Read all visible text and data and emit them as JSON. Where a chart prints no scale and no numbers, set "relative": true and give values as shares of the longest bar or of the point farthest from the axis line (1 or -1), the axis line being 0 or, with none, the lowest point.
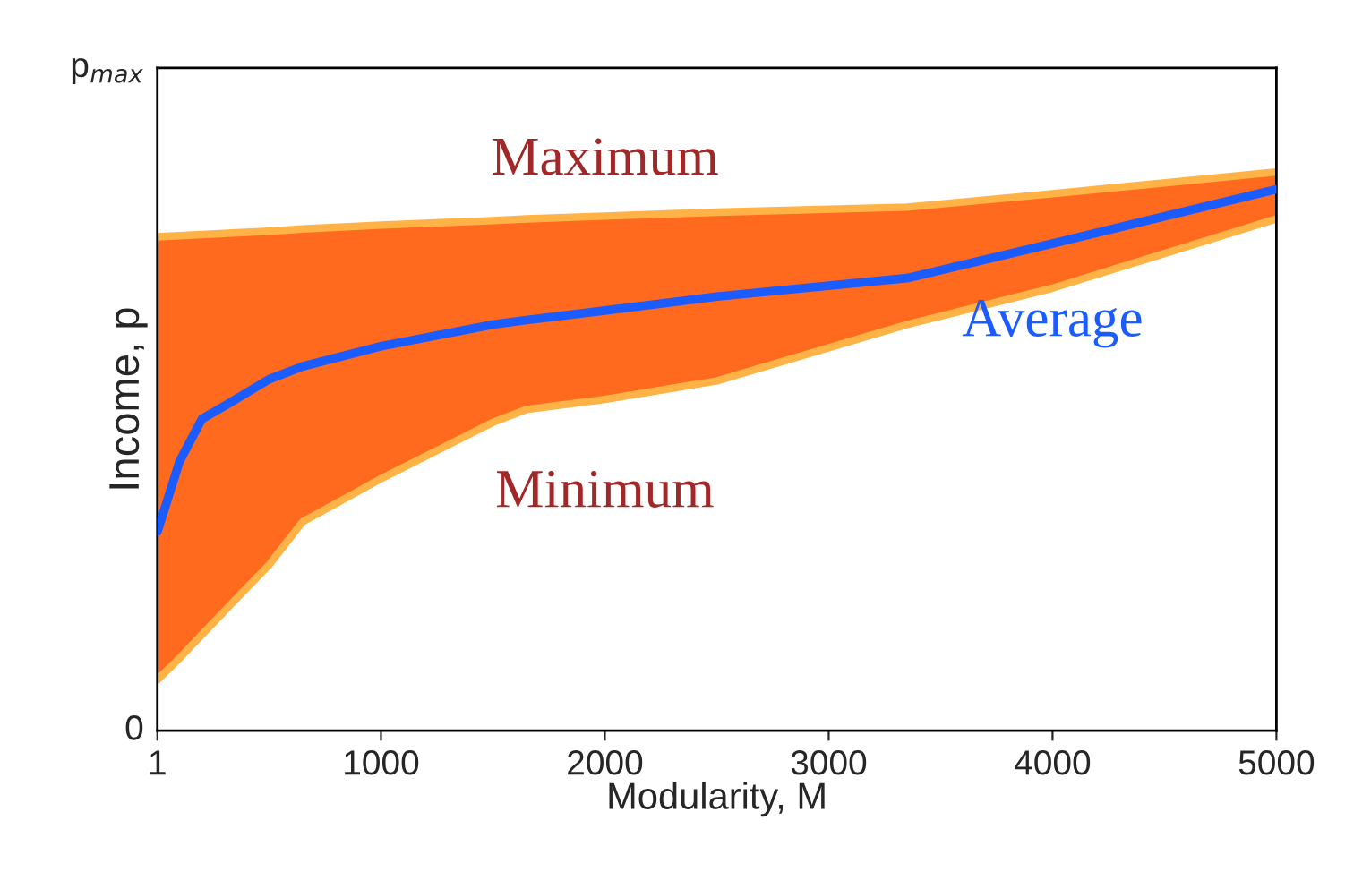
{
  "chart_data": {
    "type": "line",
    "xlabel": "Modularity, M",
    "ylabel": "Income, p",
    "relative": true,
    "x": [
      1,
      100,
      200,
      300,
      500,
      650,
      1000,
      1500,
      1650,
      2000,
      2500,
      3350,
      4000,
      5000
    ],
    "series": [
      {
        "name": "Maximum",
        "type": "area",
        "color": "#ff6a1f",
        "values": [
          0.884,
          0.886,
          0.888,
          0.89,
          0.894,
          0.898,
          0.905,
          0.913,
          0.916,
          0.921,
          0.928,
          0.937,
          0.961,
          1
        ]
      },
      {
        "name": "Minimum",
        "color": "#ffb347",
        "values": [
          0.091,
          0.13,
          0.172,
          0.214,
          0.297,
          0.374,
          0.451,
          0.552,
          0.575,
          0.593,
          0.626,
          0.727,
          0.792,
          0.916
        ]
      },
      {
        "name": "Average",
        "color": "#1a5cff",
        "values": [
          0.356,
          0.482,
          0.558,
          0.581,
          0.629,
          0.652,
          0.688,
          0.727,
          0.735,
          0.752,
          0.777,
          0.81,
          0.872,
          0.969
        ]
      }
    ],
    "annotations": [
      "0",
      "p$_{max}$"
    ],
    "xlim": [
      1,
      5000
    ],
    "xticks": [
      1,
      1000,
      2000,
      3000,
      4000,
      5000
    ],
    "grid": false,
    "legend": false,
    "marker": "none",
    "line_style": "solid"
  }
}
